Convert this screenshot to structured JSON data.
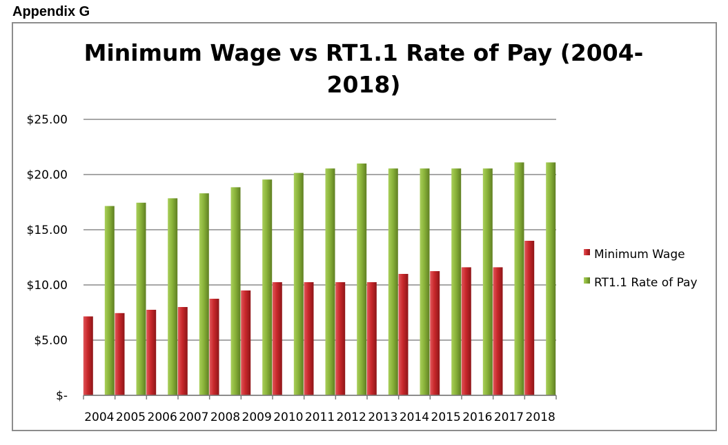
{
  "header": {
    "appendix_label": "Appendix G"
  },
  "chart_data": {
    "type": "bar",
    "title_line1": "Minimum Wage vs RT1.1 Rate of Pay  (2004-",
    "title_line2": "2018)",
    "xlabel": "",
    "ylabel": "",
    "categories": [
      "2004",
      "2005",
      "2006",
      "2007",
      "2008",
      "2009",
      "2010",
      "2011",
      "2012",
      "2013",
      "2014",
      "2015",
      "2016",
      "2017",
      "2018"
    ],
    "series": [
      {
        "name": "Minimum Wage",
        "color": "#c8282b",
        "values": [
          7.15,
          7.45,
          7.75,
          8.0,
          8.75,
          9.5,
          10.25,
          10.25,
          10.25,
          10.25,
          11.0,
          11.25,
          11.6,
          11.6,
          14.0
        ]
      },
      {
        "name": "RT1.1 Rate of Pay",
        "color": "#8ab33a",
        "values": [
          17.15,
          17.45,
          17.85,
          18.3,
          18.85,
          19.55,
          20.15,
          20.55,
          21.0,
          20.55,
          20.55,
          20.55,
          20.55,
          21.1,
          21.1
        ]
      }
    ],
    "ylim": [
      0,
      25
    ],
    "y_ticks": [
      0,
      5,
      10,
      15,
      20,
      25
    ],
    "y_tick_labels": [
      "$-",
      "$5.00",
      "$10.00",
      "$15.00",
      "$20.00",
      "$25.00"
    ],
    "grid": true,
    "legend_position": "right"
  }
}
